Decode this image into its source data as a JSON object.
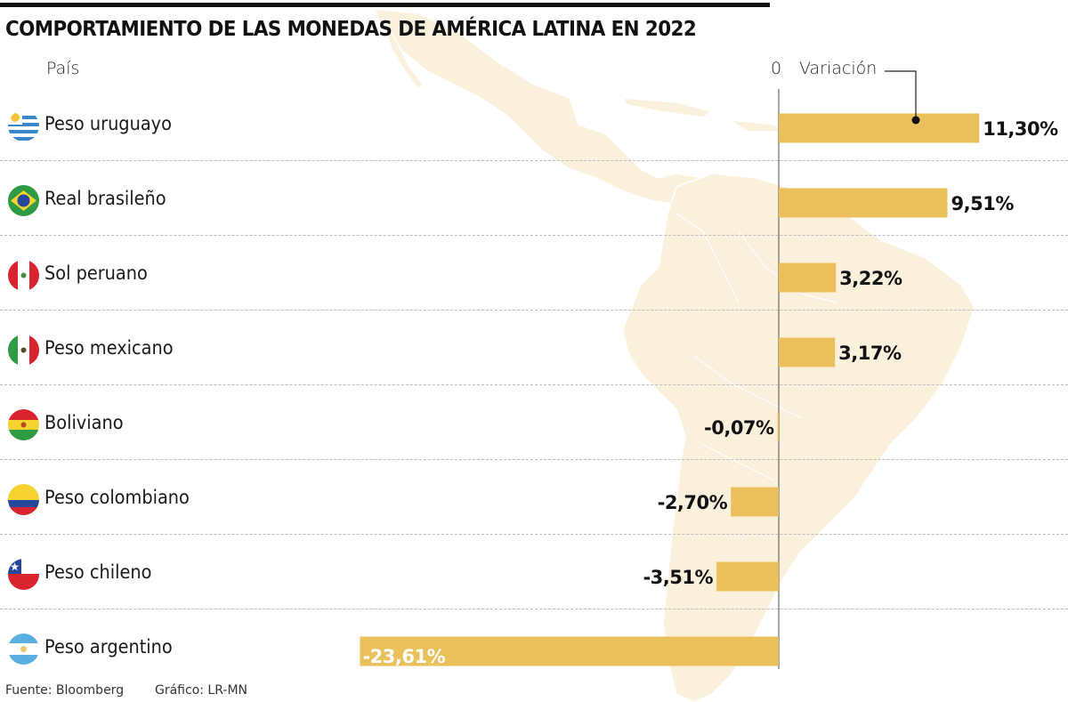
{
  "title": "COMPORTAMIENTO DE LAS MONEDAS DE AMÉRICA LATINA EN 2022",
  "header": {
    "country_label": "País",
    "zero_label": "0",
    "variation_label": "Variación"
  },
  "footer": {
    "source": "Fuente: Bloomberg",
    "credit": "Gráfico: LR-MN"
  },
  "colors": {
    "bar": "#E9C05A",
    "map": "#FBF0DC",
    "text": "#111111",
    "bar_label_inside": "#FFFFFF"
  },
  "rows": [
    {
      "label": "Peso uruguayo",
      "flag": "uruguay-flag-icon",
      "value_label": "11,30%"
    },
    {
      "label": "Real brasileño",
      "flag": "brazil-flag-icon",
      "value_label": "9,51%"
    },
    {
      "label": "Sol peruano",
      "flag": "peru-flag-icon",
      "value_label": "3,22%"
    },
    {
      "label": "Peso mexicano",
      "flag": "mexico-flag-icon",
      "value_label": "3,17%"
    },
    {
      "label": "Boliviano",
      "flag": "bolivia-flag-icon",
      "value_label": "-0,07%"
    },
    {
      "label": "Peso colombiano",
      "flag": "colombia-flag-icon",
      "value_label": "-2,70%"
    },
    {
      "label": "Peso chileno",
      "flag": "chile-flag-icon",
      "value_label": "-3,51%"
    },
    {
      "label": "Peso argentino",
      "flag": "argentina-flag-icon",
      "value_label": "-23,61%"
    }
  ],
  "chart_data": {
    "type": "bar",
    "orientation": "horizontal",
    "title": "COMPORTAMIENTO DE LAS MONEDAS DE AMÉRICA LATINA EN 2022",
    "xlabel": "Variación",
    "ylabel": "País",
    "categories": [
      "Peso uruguayo",
      "Real brasileño",
      "Sol peruano",
      "Peso mexicano",
      "Boliviano",
      "Peso colombiano",
      "Peso chileno",
      "Peso argentino"
    ],
    "values": [
      11.3,
      9.51,
      3.22,
      3.17,
      -0.07,
      -2.7,
      -3.51,
      -23.61
    ],
    "unit": "%",
    "xlim": [
      -23.61,
      11.3
    ],
    "grid": false,
    "legend": "none",
    "annotations": [
      "0",
      "Variación"
    ],
    "source": "Bloomberg"
  }
}
